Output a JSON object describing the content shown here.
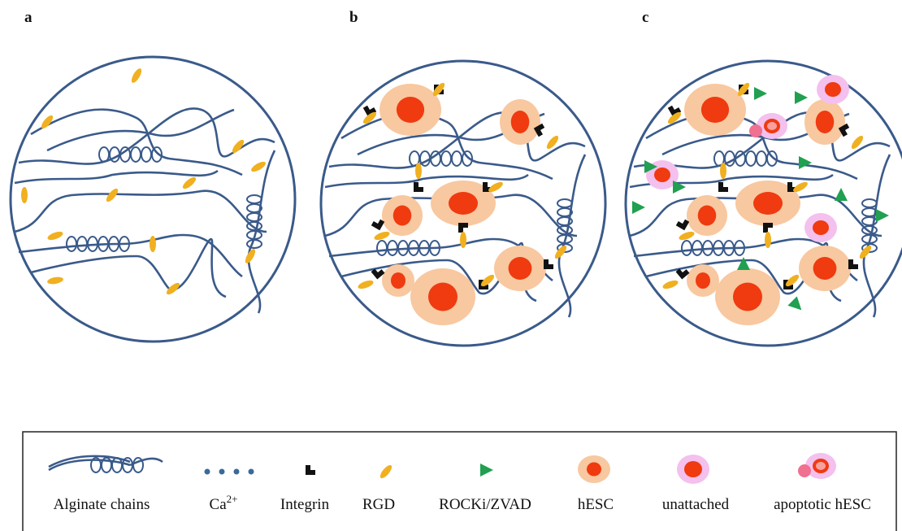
{
  "panels": [
    {
      "label": "a"
    },
    {
      "label": "b"
    },
    {
      "label": "c"
    }
  ],
  "legend": [
    {
      "label": "Alginate chains"
    },
    {
      "label": "Ca",
      "superscript": "2+"
    },
    {
      "label": "Integrin"
    },
    {
      "label": "RGD"
    },
    {
      "label": "ROCKi/ZVAD"
    },
    {
      "label": "hESC"
    },
    {
      "label": "unattached"
    },
    {
      "label": "apoptotic hESC"
    }
  ]
}
